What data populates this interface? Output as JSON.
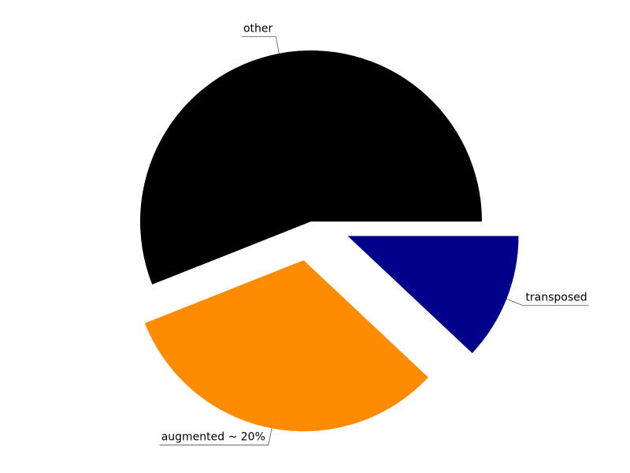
{
  "chart_data": {
    "type": "pie",
    "title": "",
    "slices": [
      {
        "label": "other",
        "value": 0.56,
        "color": "#000000",
        "exploded": false
      },
      {
        "label": "augmented ~ 20%",
        "value": 0.32,
        "color": "#FF8C00",
        "exploded": true
      },
      {
        "label": "transposed",
        "value": 0.12,
        "color": "#00008B",
        "exploded": true
      }
    ],
    "start_angle_deg": 0,
    "direction": "counterclockwise",
    "legend": "none"
  }
}
